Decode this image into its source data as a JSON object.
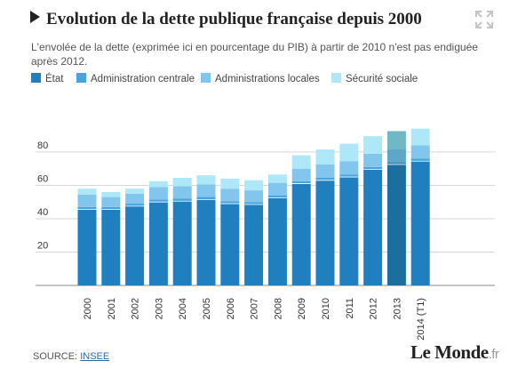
{
  "title": "Evolution de la dette publique française depuis 2000",
  "subtitle": "L'envolée de la dette (exprimée ici en pourcentage du PIB) à partir de 2010 n'est pas endiguée après 2012.",
  "source": {
    "label": "SOURCE:",
    "link": "INSEE"
  },
  "logo": {
    "text": "Le Monde",
    "suffix": ".fr"
  },
  "colors": {
    "etat": "#1f7fbf",
    "centrale": "#4aa3dc",
    "locales": "#82c6ee",
    "securite": "#aee8f8"
  },
  "chart_data": {
    "type": "bar",
    "stacked": true,
    "categories": [
      "2000",
      "2001",
      "2002",
      "2003",
      "2004",
      "2005",
      "2006",
      "2007",
      "2008",
      "2009",
      "2010",
      "2011",
      "2012",
      "2013",
      "2014 (T1)"
    ],
    "series": [
      {
        "name": "État",
        "color": "#1f7fbf",
        "values": [
          45.5,
          45.5,
          47.5,
          50.0,
          50.5,
          51.5,
          49.0,
          48.5,
          52.5,
          61.0,
          63.0,
          65.0,
          69.5,
          72.5,
          74.5
        ]
      },
      {
        "name": "Administration centrale",
        "color": "#4aa3dc",
        "values": [
          1.5,
          1.5,
          1.5,
          1.5,
          1.5,
          1.5,
          1.5,
          1.5,
          1.5,
          1.5,
          1.5,
          1.5,
          1.5,
          1.5,
          1.5
        ]
      },
      {
        "name": "Administrations locales",
        "color": "#82c6ee",
        "values": [
          7.5,
          6.0,
          6.0,
          7.5,
          7.5,
          7.5,
          7.5,
          7.0,
          7.5,
          7.5,
          8.0,
          8.0,
          8.0,
          8.0,
          8.0
        ]
      },
      {
        "name": "Sécurité sociale",
        "color": "#aee8f8",
        "values": [
          3.5,
          3.0,
          3.0,
          3.5,
          5.0,
          5.5,
          6.0,
          6.0,
          5.0,
          8.0,
          9.0,
          10.5,
          10.5,
          10.5,
          10.0
        ]
      }
    ],
    "highlight_index": 13,
    "highlight_colors": [
      "#1c6e9e",
      "#3d8ab5",
      "#5fa7c6",
      "#71b8c6"
    ],
    "yticks": [
      20,
      40,
      60,
      80
    ],
    "ylim": [
      0,
      100
    ],
    "grid": true,
    "legend": "top-left"
  }
}
